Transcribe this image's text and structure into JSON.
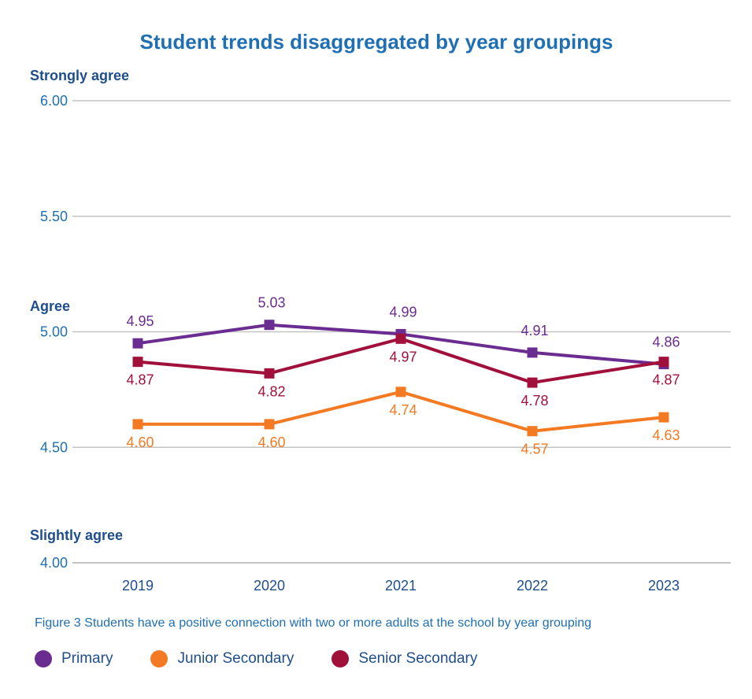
{
  "chart_data": {
    "type": "line",
    "title": "Student trends disaggregated by year groupings",
    "caption": "Figure 3 Students have a positive connection with two or more adults at the school by year grouping",
    "x": [
      "2019",
      "2020",
      "2021",
      "2022",
      "2023"
    ],
    "ylim": [
      4.0,
      6.0
    ],
    "yticks": [
      "4.00",
      "4.50",
      "5.00",
      "5.50",
      "6.00"
    ],
    "band_labels": {
      "strongly_agree": "Strongly agree",
      "agree": "Agree",
      "slightly_agree": "Slightly agree"
    },
    "grid": true,
    "legend_position": "bottom-left",
    "series": [
      {
        "name": "Primary",
        "color": "#6a2c91",
        "values": [
          4.95,
          5.03,
          4.99,
          4.91,
          4.86
        ],
        "labels": [
          "4.95",
          "5.03",
          "4.99",
          "4.91",
          "4.86"
        ]
      },
      {
        "name": "Junior Secondary",
        "color": "#f37a22",
        "values": [
          4.6,
          4.6,
          4.74,
          4.57,
          4.63
        ],
        "labels": [
          "4.60",
          "4.60",
          "4.74",
          "4.57",
          "4.63"
        ]
      },
      {
        "name": "Senior Secondary",
        "color": "#a1103a",
        "values": [
          4.87,
          4.82,
          4.97,
          4.78,
          4.87
        ],
        "labels": [
          "4.87",
          "4.82",
          "4.97",
          "4.78",
          "4.87"
        ]
      }
    ]
  }
}
